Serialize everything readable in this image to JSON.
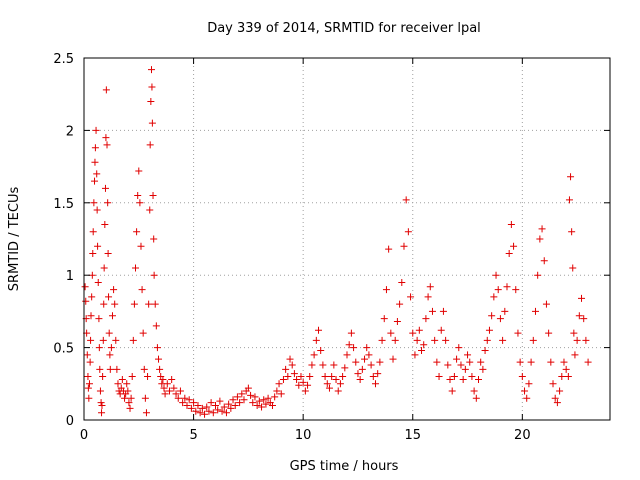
{
  "chart_data": {
    "type": "scatter",
    "title": "Day 339 of 2014, SRMTID for receiver lpal",
    "xlabel": "GPS time / hours",
    "ylabel": "SRMTID / TECUs",
    "xlim": [
      0,
      24
    ],
    "ylim": [
      0,
      2.5
    ],
    "xticks": [
      0,
      5,
      10,
      15,
      20
    ],
    "xtick_labels": [
      "0",
      "5",
      "10",
      "15",
      "20"
    ],
    "yticks": [
      0,
      0.5,
      1,
      1.5,
      2,
      2.5
    ],
    "ytick_labels": [
      "0",
      "0.5",
      "1",
      "1.5",
      "2",
      "2.5"
    ],
    "grid": true,
    "marker": "+",
    "series": [
      {
        "name": "SRMTID",
        "color": "#e00000",
        "points": [
          [
            0.05,
            0.92
          ],
          [
            0.08,
            0.82
          ],
          [
            0.1,
            0.7
          ],
          [
            0.12,
            0.6
          ],
          [
            0.15,
            0.45
          ],
          [
            0.18,
            0.3
          ],
          [
            0.2,
            0.22
          ],
          [
            0.22,
            0.15
          ],
          [
            0.25,
            0.25
          ],
          [
            0.28,
            0.4
          ],
          [
            0.3,
            0.55
          ],
          [
            0.32,
            0.72
          ],
          [
            0.35,
            0.85
          ],
          [
            0.38,
            1.0
          ],
          [
            0.4,
            1.15
          ],
          [
            0.42,
            1.3
          ],
          [
            0.45,
            1.5
          ],
          [
            0.48,
            1.65
          ],
          [
            0.5,
            1.78
          ],
          [
            0.52,
            1.88
          ],
          [
            0.55,
            2.0
          ],
          [
            0.58,
            1.7
          ],
          [
            0.6,
            1.45
          ],
          [
            0.62,
            1.2
          ],
          [
            0.65,
            0.95
          ],
          [
            0.68,
            0.7
          ],
          [
            0.7,
            0.5
          ],
          [
            0.72,
            0.35
          ],
          [
            0.75,
            0.2
          ],
          [
            0.78,
            0.12
          ],
          [
            0.8,
            0.05
          ],
          [
            0.82,
            0.1
          ],
          [
            0.85,
            0.3
          ],
          [
            0.88,
            0.55
          ],
          [
            0.9,
            0.8
          ],
          [
            0.92,
            1.05
          ],
          [
            0.95,
            1.35
          ],
          [
            0.98,
            1.6
          ],
          [
            1.0,
            1.95
          ],
          [
            1.02,
            2.28
          ],
          [
            1.05,
            1.9
          ],
          [
            1.08,
            1.5
          ],
          [
            1.1,
            1.15
          ],
          [
            1.12,
            0.85
          ],
          [
            1.15,
            0.6
          ],
          [
            1.18,
            0.45
          ],
          [
            1.2,
            0.35
          ],
          [
            1.25,
            0.5
          ],
          [
            1.3,
            0.72
          ],
          [
            1.35,
            0.9
          ],
          [
            1.4,
            0.8
          ],
          [
            1.45,
            0.55
          ],
          [
            1.5,
            0.35
          ],
          [
            1.55,
            0.25
          ],
          [
            1.6,
            0.2
          ],
          [
            1.65,
            0.18
          ],
          [
            1.7,
            0.22
          ],
          [
            1.75,
            0.28
          ],
          [
            1.8,
            0.2
          ],
          [
            1.85,
            0.15
          ],
          [
            1.9,
            0.18
          ],
          [
            1.95,
            0.25
          ],
          [
            2.0,
            0.2
          ],
          [
            2.05,
            0.12
          ],
          [
            2.1,
            0.08
          ],
          [
            2.15,
            0.15
          ],
          [
            2.2,
            0.3
          ],
          [
            2.25,
            0.55
          ],
          [
            2.3,
            0.8
          ],
          [
            2.35,
            1.05
          ],
          [
            2.4,
            1.3
          ],
          [
            2.45,
            1.55
          ],
          [
            2.5,
            1.72
          ],
          [
            2.55,
            1.5
          ],
          [
            2.6,
            1.2
          ],
          [
            2.65,
            0.9
          ],
          [
            2.7,
            0.6
          ],
          [
            2.75,
            0.35
          ],
          [
            2.8,
            0.15
          ],
          [
            2.85,
            0.05
          ],
          [
            2.9,
            0.3
          ],
          [
            2.95,
            0.8
          ],
          [
            3.0,
            1.45
          ],
          [
            3.02,
            1.9
          ],
          [
            3.05,
            2.2
          ],
          [
            3.08,
            2.42
          ],
          [
            3.1,
            2.3
          ],
          [
            3.12,
            2.05
          ],
          [
            3.15,
            1.55
          ],
          [
            3.18,
            1.25
          ],
          [
            3.2,
            1.0
          ],
          [
            3.25,
            0.8
          ],
          [
            3.3,
            0.65
          ],
          [
            3.35,
            0.5
          ],
          [
            3.4,
            0.42
          ],
          [
            3.45,
            0.35
          ],
          [
            3.5,
            0.3
          ],
          [
            3.55,
            0.25
          ],
          [
            3.6,
            0.28
          ],
          [
            3.65,
            0.22
          ],
          [
            3.7,
            0.18
          ],
          [
            3.8,
            0.25
          ],
          [
            3.9,
            0.2
          ],
          [
            4.0,
            0.28
          ],
          [
            4.1,
            0.22
          ],
          [
            4.2,
            0.18
          ],
          [
            4.3,
            0.15
          ],
          [
            4.4,
            0.2
          ],
          [
            4.5,
            0.12
          ],
          [
            4.6,
            0.15
          ],
          [
            4.7,
            0.1
          ],
          [
            4.8,
            0.14
          ],
          [
            4.9,
            0.08
          ],
          [
            5.0,
            0.12
          ],
          [
            5.1,
            0.06
          ],
          [
            5.2,
            0.1
          ],
          [
            5.3,
            0.05
          ],
          [
            5.4,
            0.08
          ],
          [
            5.5,
            0.04
          ],
          [
            5.6,
            0.09
          ],
          [
            5.7,
            0.06
          ],
          [
            5.8,
            0.12
          ],
          [
            5.9,
            0.05
          ],
          [
            6.0,
            0.1
          ],
          [
            6.1,
            0.07
          ],
          [
            6.2,
            0.13
          ],
          [
            6.3,
            0.06
          ],
          [
            6.4,
            0.09
          ],
          [
            6.5,
            0.05
          ],
          [
            6.6,
            0.11
          ],
          [
            6.7,
            0.08
          ],
          [
            6.8,
            0.14
          ],
          [
            6.9,
            0.1
          ],
          [
            7.0,
            0.16
          ],
          [
            7.1,
            0.12
          ],
          [
            7.2,
            0.18
          ],
          [
            7.3,
            0.14
          ],
          [
            7.4,
            0.2
          ],
          [
            7.5,
            0.22
          ],
          [
            7.6,
            0.17
          ],
          [
            7.7,
            0.12
          ],
          [
            7.8,
            0.16
          ],
          [
            7.9,
            0.1
          ],
          [
            8.0,
            0.13
          ],
          [
            8.1,
            0.09
          ],
          [
            8.2,
            0.14
          ],
          [
            8.3,
            0.11
          ],
          [
            8.4,
            0.15
          ],
          [
            8.5,
            0.12
          ],
          [
            8.6,
            0.1
          ],
          [
            8.7,
            0.16
          ],
          [
            8.8,
            0.2
          ],
          [
            8.9,
            0.25
          ],
          [
            9.0,
            0.18
          ],
          [
            9.1,
            0.28
          ],
          [
            9.2,
            0.35
          ],
          [
            9.3,
            0.3
          ],
          [
            9.4,
            0.42
          ],
          [
            9.5,
            0.38
          ],
          [
            9.6,
            0.32
          ],
          [
            9.7,
            0.28
          ],
          [
            9.8,
            0.24
          ],
          [
            9.9,
            0.3
          ],
          [
            10.0,
            0.26
          ],
          [
            10.1,
            0.2
          ],
          [
            10.2,
            0.24
          ],
          [
            10.3,
            0.3
          ],
          [
            10.4,
            0.38
          ],
          [
            10.5,
            0.45
          ],
          [
            10.6,
            0.55
          ],
          [
            10.7,
            0.62
          ],
          [
            10.8,
            0.48
          ],
          [
            10.9,
            0.38
          ],
          [
            11.0,
            0.3
          ],
          [
            11.1,
            0.25
          ],
          [
            11.2,
            0.22
          ],
          [
            11.3,
            0.3
          ],
          [
            11.4,
            0.38
          ],
          [
            11.5,
            0.28
          ],
          [
            11.6,
            0.2
          ],
          [
            11.7,
            0.25
          ],
          [
            11.8,
            0.3
          ],
          [
            11.9,
            0.36
          ],
          [
            12.0,
            0.45
          ],
          [
            12.1,
            0.52
          ],
          [
            12.2,
            0.6
          ],
          [
            12.3,
            0.5
          ],
          [
            12.4,
            0.4
          ],
          [
            12.5,
            0.32
          ],
          [
            12.6,
            0.28
          ],
          [
            12.7,
            0.35
          ],
          [
            12.8,
            0.42
          ],
          [
            12.9,
            0.5
          ],
          [
            13.0,
            0.45
          ],
          [
            13.1,
            0.38
          ],
          [
            13.2,
            0.3
          ],
          [
            13.3,
            0.25
          ],
          [
            13.4,
            0.32
          ],
          [
            13.5,
            0.4
          ],
          [
            13.6,
            0.55
          ],
          [
            13.7,
            0.7
          ],
          [
            13.8,
            0.9
          ],
          [
            13.9,
            1.18
          ],
          [
            14.0,
            0.6
          ],
          [
            14.1,
            0.42
          ],
          [
            14.2,
            0.55
          ],
          [
            14.3,
            0.68
          ],
          [
            14.4,
            0.8
          ],
          [
            14.5,
            0.95
          ],
          [
            14.6,
            1.2
          ],
          [
            14.7,
            1.52
          ],
          [
            14.8,
            1.3
          ],
          [
            14.9,
            0.85
          ],
          [
            15.0,
            0.6
          ],
          [
            15.1,
            0.45
          ],
          [
            15.2,
            0.55
          ],
          [
            15.3,
            0.62
          ],
          [
            15.4,
            0.48
          ],
          [
            15.5,
            0.52
          ],
          [
            15.6,
            0.7
          ],
          [
            15.7,
            0.85
          ],
          [
            15.8,
            0.92
          ],
          [
            15.9,
            0.75
          ],
          [
            16.0,
            0.55
          ],
          [
            16.1,
            0.4
          ],
          [
            16.2,
            0.3
          ],
          [
            16.3,
            0.62
          ],
          [
            16.4,
            0.75
          ],
          [
            16.5,
            0.55
          ],
          [
            16.6,
            0.38
          ],
          [
            16.7,
            0.28
          ],
          [
            16.8,
            0.2
          ],
          [
            16.9,
            0.3
          ],
          [
            17.0,
            0.42
          ],
          [
            17.1,
            0.5
          ],
          [
            17.2,
            0.38
          ],
          [
            17.3,
            0.28
          ],
          [
            17.4,
            0.35
          ],
          [
            17.5,
            0.45
          ],
          [
            17.6,
            0.4
          ],
          [
            17.7,
            0.3
          ],
          [
            17.8,
            0.2
          ],
          [
            17.9,
            0.15
          ],
          [
            18.0,
            0.28
          ],
          [
            18.1,
            0.4
          ],
          [
            18.2,
            0.35
          ],
          [
            18.3,
            0.48
          ],
          [
            18.4,
            0.55
          ],
          [
            18.5,
            0.62
          ],
          [
            18.6,
            0.72
          ],
          [
            18.7,
            0.85
          ],
          [
            18.8,
            1.0
          ],
          [
            18.9,
            0.9
          ],
          [
            19.0,
            0.7
          ],
          [
            19.1,
            0.55
          ],
          [
            19.2,
            0.75
          ],
          [
            19.3,
            0.92
          ],
          [
            19.4,
            1.15
          ],
          [
            19.5,
            1.35
          ],
          [
            19.6,
            1.2
          ],
          [
            19.7,
            0.9
          ],
          [
            19.8,
            0.6
          ],
          [
            19.9,
            0.4
          ],
          [
            20.0,
            0.3
          ],
          [
            20.1,
            0.2
          ],
          [
            20.2,
            0.15
          ],
          [
            20.3,
            0.25
          ],
          [
            20.4,
            0.4
          ],
          [
            20.5,
            0.55
          ],
          [
            20.6,
            0.75
          ],
          [
            20.7,
            1.0
          ],
          [
            20.8,
            1.25
          ],
          [
            20.9,
            1.32
          ],
          [
            21.0,
            1.1
          ],
          [
            21.1,
            0.8
          ],
          [
            21.2,
            0.6
          ],
          [
            21.3,
            0.4
          ],
          [
            21.4,
            0.25
          ],
          [
            21.5,
            0.15
          ],
          [
            21.6,
            0.12
          ],
          [
            21.7,
            0.2
          ],
          [
            21.8,
            0.3
          ],
          [
            21.9,
            0.4
          ],
          [
            22.0,
            0.35
          ],
          [
            22.1,
            0.3
          ],
          [
            22.15,
            1.52
          ],
          [
            22.2,
            1.68
          ],
          [
            22.25,
            1.3
          ],
          [
            22.3,
            1.05
          ],
          [
            22.35,
            0.6
          ],
          [
            22.4,
            0.45
          ],
          [
            22.5,
            0.55
          ],
          [
            22.6,
            0.72
          ],
          [
            22.7,
            0.84
          ],
          [
            22.8,
            0.7
          ],
          [
            22.9,
            0.55
          ],
          [
            23.0,
            0.4
          ]
        ]
      }
    ]
  }
}
